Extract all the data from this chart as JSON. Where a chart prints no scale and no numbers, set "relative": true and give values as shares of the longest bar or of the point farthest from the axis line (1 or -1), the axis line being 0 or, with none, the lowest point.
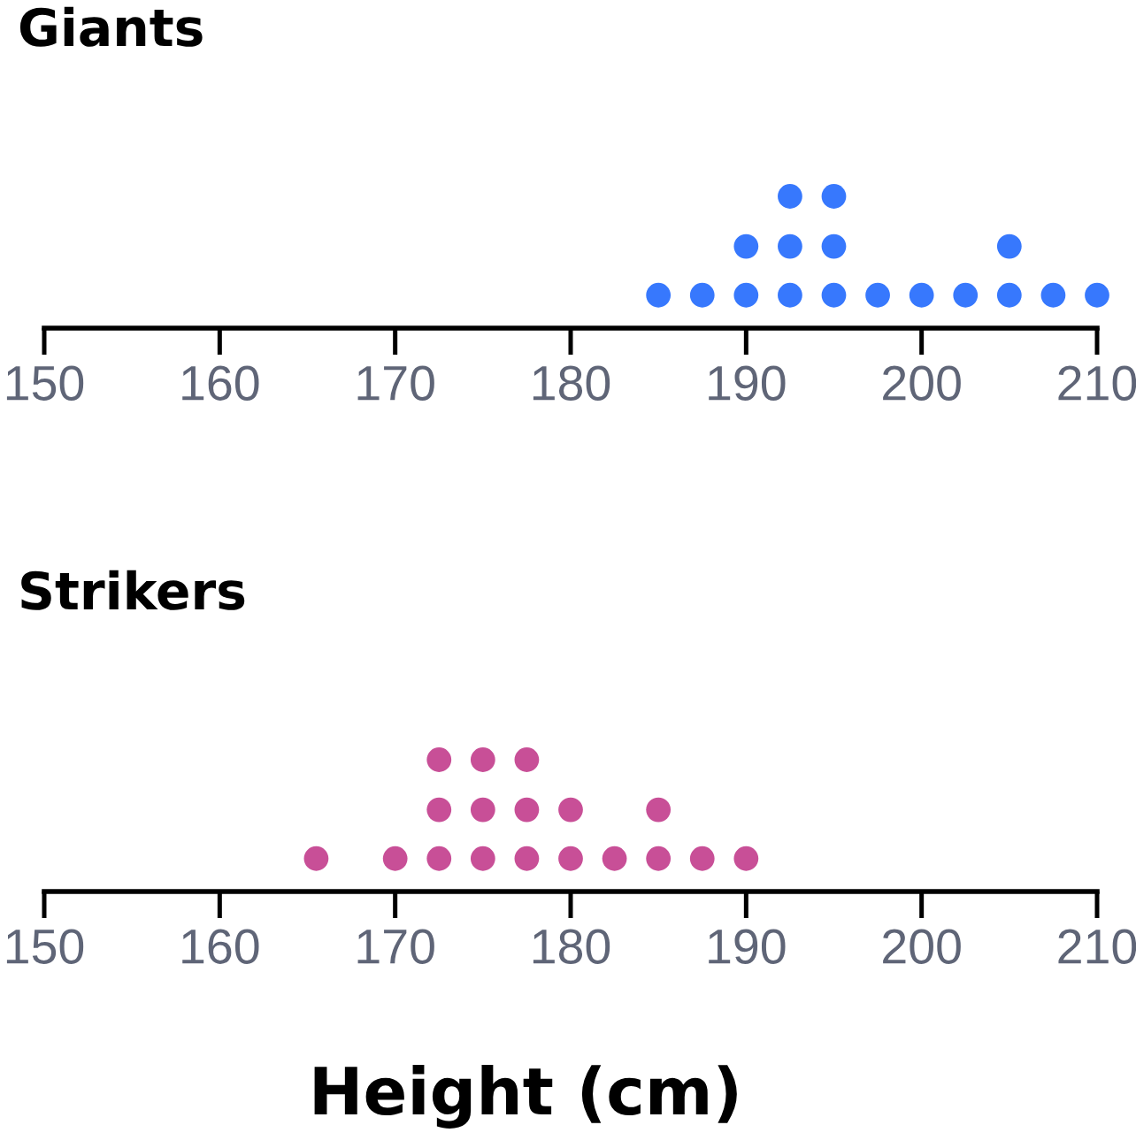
{
  "chart_data": [
    {
      "type": "scatter",
      "title": "Giants",
      "x": [
        185,
        187.5,
        190,
        190,
        192.5,
        192.5,
        192.5,
        195,
        195,
        195,
        197.5,
        200,
        202.5,
        205,
        205,
        207.5,
        210
      ],
      "values": [
        0.25,
        0.25,
        0.25,
        0.62,
        0.25,
        0.62,
        1,
        0.25,
        0.62,
        1,
        0.25,
        0.25,
        0.25,
        0.25,
        0.62,
        0.25,
        0.25
      ],
      "color": "#3778fd",
      "relative": true,
      "marker": "circle",
      "xlim": [
        150,
        210
      ],
      "xticks": [
        150,
        160,
        170,
        180,
        190,
        200,
        210
      ],
      "tick_labels": "x"
    },
    {
      "type": "scatter",
      "title": "Strikers",
      "xlabel": "Height (cm)",
      "x": [
        165.5,
        170,
        172.5,
        172.5,
        172.5,
        175,
        175,
        175,
        177.5,
        177.5,
        177.5,
        180,
        180,
        182.5,
        185,
        185,
        187.5,
        190
      ],
      "values": [
        0.25,
        0.25,
        0.25,
        0.62,
        1,
        0.25,
        0.62,
        1,
        0.25,
        0.62,
        1,
        0.25,
        0.62,
        0.25,
        0.25,
        0.62,
        0.25,
        0.25
      ],
      "color": "#c84f97",
      "relative": true,
      "marker": "circle",
      "xlim": [
        150,
        210
      ],
      "xticks": [
        150,
        160,
        170,
        180,
        190,
        200,
        210
      ],
      "tick_labels": "x"
    }
  ]
}
